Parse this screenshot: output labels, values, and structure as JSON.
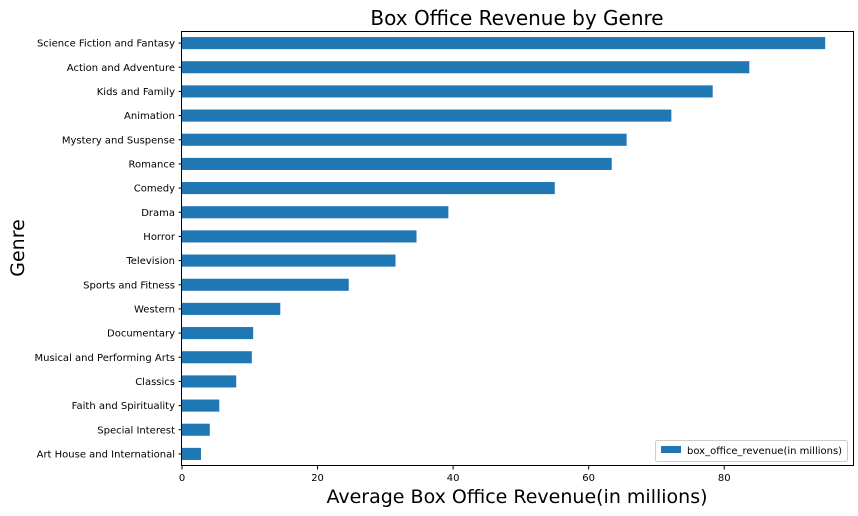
{
  "chart_data": {
    "type": "bar",
    "orientation": "horizontal",
    "title": "Box Office Revenue by Genre",
    "xlabel": "Average Box Office Revenue(in millions)",
    "ylabel": "Genre",
    "xlim": [
      0,
      99
    ],
    "xticks": [
      "0",
      "20",
      "40",
      "60",
      "80"
    ],
    "grid": false,
    "legend_position": "bottom-right",
    "bar_color": "#1f77b4",
    "categories": [
      "Science Fiction and Fantasy",
      "Action and Adventure",
      "Kids and Family",
      "Animation",
      "Mystery and Suspense",
      "Romance",
      "Comedy",
      "Drama",
      "Horror",
      "Television",
      "Sports and Fitness",
      "Western",
      "Documentary",
      "Musical and Performing Arts",
      "Classics",
      "Faith and Spirituality",
      "Special Interest",
      "Art House and International"
    ],
    "series": [
      {
        "name": "box_office_revenue(in millions)",
        "values": [
          94.9,
          83.7,
          78.3,
          72.2,
          65.6,
          63.4,
          55.0,
          39.3,
          34.6,
          31.5,
          24.6,
          14.5,
          10.5,
          10.3,
          8.0,
          5.5,
          4.1,
          2.8
        ]
      }
    ]
  }
}
